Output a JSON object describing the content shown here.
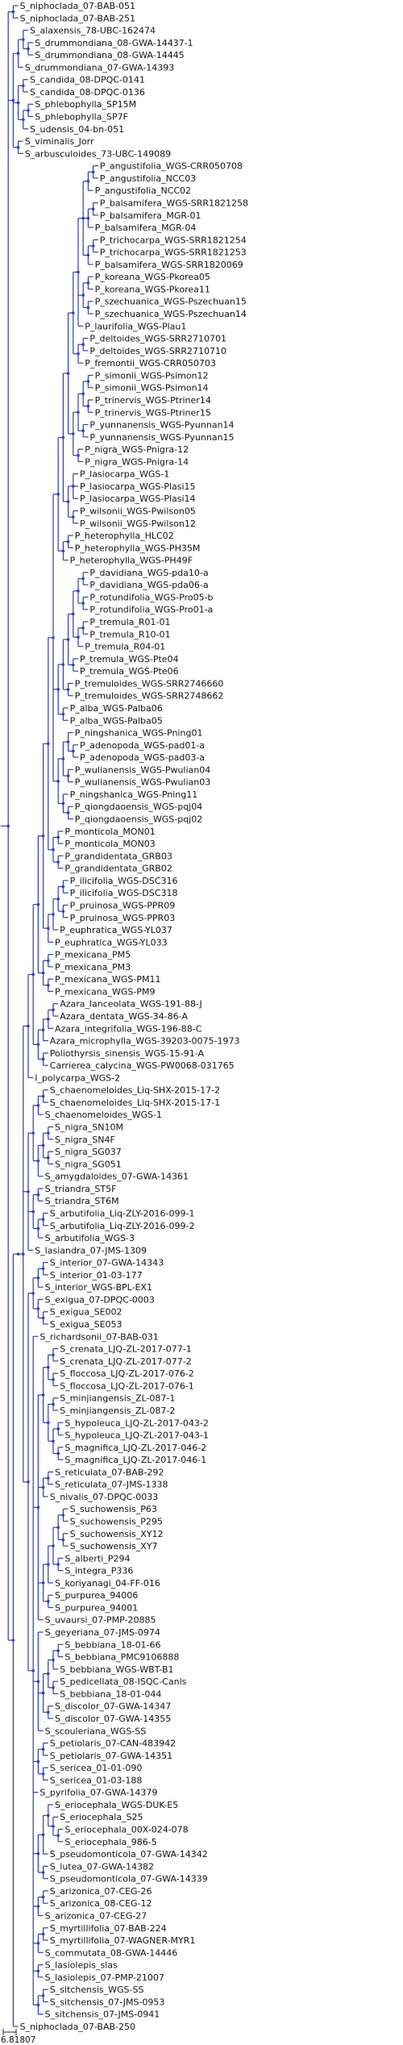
{
  "tree": {
    "scale_label": "6.81807",
    "newick": "(((S_niphoclada_07-BAB-051,S_niphoclada_07-BAB-251),(((S_alaxensis_78-UBC-162474,(S_drummondiana_08-GWA-14437-1,S_drummondiana_08-GWA-14445)),S_drummondiana_07-GWA-14393),((S_candida_08-DPQC-0141,S_candida_08-DPQC-0136),((S_phlebophylla_SP15M,S_phlebophylla_SP7F),S_udensis_04-bn-051)),(S_viminalis_Jorr,S_arbusculoides_73-UBC-149089)),(((((((((((((((((P_angustifolia_WGS-CRR050708,P_angustifolia_NCC03),P_angustifolia_NCC02),((P_balsamifera_WGS-SRR1821258,P_balsamifera_MGR-01),P_balsamifera_MGR-04),((P_trichocarpa_WGS-SRR1821254,P_trichocarpa_WGS-SRR1821253),P_balsamifera_WGS-SRR1820069)),((P_koreana_WGS-Pkorea05,P_koreana_WGS-Pkorea11),(P_szechuanica_WGS-Pszechuan15,P_szechuanica_WGS-Pszechuan14)),P_laurifolia_WGS-Plau1),((P_deltoides_WGS-SRR2710701,P_deltoides_WGS-SRR2710710),P_fremontii_WGS-CRR050703)),((((P_simonii_WGS-Psimon12,P_simonii_WGS-Psimon14),(P_trinervis_WGS-Ptriner14,P_trinervis_WGS-Ptriner15)),(P_yunnanensis_WGS-Pyunnan14,P_yunnanensis_WGS-Pyunnan15)),(P_nigra_WGS-Pnigra-12,P_nigra_WGS-Pnigra-14))),((P_lasiocarpa_WGS-1,P_lasiocarpa_WGS-Plasi15,P_lasiocarpa_WGS-Plasi14),(P_wilsonii_WGS-Pwilson05,P_wilsonii_WGS-Pwilson12))),((P_heterophylla_HLC02,P_heterophylla_WGS-PH35M),P_heterophylla_WGS-PH49F)),((((((P_davidiana_WGS-pda10-a,P_davidiana_WGS-pda06-a),(P_rotundifolia_WGS-Pro05-b,P_rotundifolia_WGS-Pro01-a)),((P_tremula_R01-01,P_tremula_R10-01),P_tremula_R04-01)),(P_tremula_WGS-Pte04,P_tremula_WGS-Pte06)),(P_tremuloides_WGS-SRR2746660,P_tremuloides_WGS-SRR2748662)),(P_alba_WGS-Palba06,P_alba_WGS-Palba05)),(((P_ningshanica_WGS-Pning01,(P_adenopoda_WGS-pad01-a,P_adenopoda_WGS-pad03-a)),(P_wulianensis_WGS-Pwulian04,P_wulianensis_WGS-Pwulian03)),(P_ningshanica_WGS-Pning11,(P_qiongdaoensis_WGS-pqj04,P_qiongdaoensis_WGS-pqj02)))),((P_monticola_MON01,P_monticola_MON03),(P_grandidentata_GRB03,P_grandidentata_GRB02))),((((P_ilicifolia_WGS-DSC316,P_ilicifolia_WGS-DSC318),(P_pruinosa_WGS-PPR09,P_pruinosa_WGS-PPR03)),P_euphratica_WGS-YL037),P_euphratica_WGS-YL033)),((P_mexicana_PM5,P_mexicana_PM3),(P_mexicana_WGS-PM11,P_mexicana_WGS-PM9))),((((Azara_lanceolata_WGS-191-88-J,Azara_dentata_WGS-34-86-A),Azara_integrifolia_WGS-196-88-C),Azara_microphylla_WGS-39203-0075-1973),(Poliothyrsis_sinensis_WGS-15-91-A,Carrierea_calycina_WGS-PW0068-031765))),I_polycarpa_WGS-2),((((S_chaenomeloides_Liq-SHX-2015-17-2,S_chaenomeloides_Liq-SHX-2015-17-1),S_chaenomeloides_WGS-1),(((S_nigra_SN10M,S_nigra_SN4F),(S_nigra_SG037,S_nigra_SG051)),S_amygdaloides_07-GWA-14361)),((S_triandra_ST5F,S_triandra_ST6M),((S_arbutifolia_Liq-ZLY-2016-099-1,S_arbutifolia_Liq-ZLY-2016-099-2),S_arbutifolia_WGS-3)),S_lasiandra_07-JMS-1309),((((S_interior_07-GWA-14343,S_interior_01-03-177),S_interior_WGS-BPL-EX1),(S_exigua_07-DPQC-0003,(S_exigua_SE002,S_exigua_SE053))),(S_richardsonii_07-BAB-031,((((S_crenata_LJQ-ZL-2017-077-1,S_crenata_LJQ-ZL-2017-077-2),(S_floccosa_LJQ-ZL-2017-076-2,S_floccosa_LJQ-ZL-2017-076-1)),((S_minjiangensis_ZL-087-1,S_minjiangensis_ZL-087-2),((S_hypoleuca_LJQ-ZL-2017-043-2,S_hypoleuca_LJQ-ZL-2017-043-1),(S_magnifica_LJQ-ZL-2017-046-2,S_magnifica_LJQ-ZL-2017-046-1)))),((S_reticulata_07-BAB-292,S_reticulata_07-JMS-1338),S_nivalis_07-DPQC-0033),(((((S_suchowensis_P63,S_suchowensis_P295),(S_suchowensis_XY12,S_suchowensis_XY7)),(S_alberti_P294,S_integra_P336)),S_koriyanagi_04-FF-016),(S_purpurea_94006,S_purpurea_94001)),S_uvaursi_07-PMP-20885),(S_geyeriana_07-JMS-0974,((((S_bebbiana_18-01-66,S_bebbiana_PMC9106888),S_bebbiana_WGS-WBT-B1),(S_pedicellata_08-ISQC-Canls,S_bebbiana_18-01-044)),(S_discolor_07-GWA-14347,S_discolor_07-GWA-14355)),S_scouleriana_WGS-SS),((S_petiolaris_07-CAN-483942,S_petiolaris_07-GWA-14351),(S_sericea_01-01-090,S_sericea_01-03-188)),S_pyrifolia_07-GWA-14379,(((S_eriocephala_WGS-DUK-E5,(S_eriocephala_S25,(S_eriocephala_00X-024-078,S_eriocephala_986-5))),S_pseudomonticola_07-GWA-14342),(S_lutea_07-GWA-14382,S_pseudomonticola_07-GWA-14339)),((S_arizonica_07-CEG-26,S_arizonica_08-CEG-12),S_arizonica_07-CEG-27),((S_myrtillifolia_07-BAB-224,S_myrtillifolia_07-WAGNER-MYR1),S_commutata_08-GWA-14446),(S_lasiolepis_slas,S_lasiolepis_07-PMP-21007),((S_sitchensis_WGS-SS,S_sitchensis_07-JMS-0953),S_sitchensis_07-JMS-0941))))),S_niphoclada_07-BAB-250)"
  },
  "colors": {
    "branch": "#2f3f9e",
    "node": "#2a3fd0",
    "label": "#111111"
  }
}
